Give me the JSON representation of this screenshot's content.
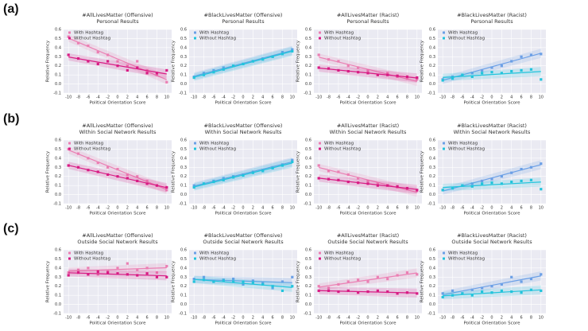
{
  "panel_labels": [
    "(a)",
    "(b)",
    "(c)"
  ],
  "chart_data": [
    {
      "type": "scatter",
      "title": "#AllLivesMatter (Offensive)",
      "subtitle": "Personal Results",
      "xlabel": "Political Orientation Score",
      "ylabel": "Relative Frequency",
      "x": [
        -10,
        -8,
        -6,
        -4,
        -2,
        0,
        2,
        4,
        6,
        8,
        10
      ],
      "xlim": [
        -11,
        11
      ],
      "xticks": [
        -10,
        -8,
        -6,
        -4,
        -2,
        0,
        2,
        4,
        6,
        8,
        10
      ],
      "ylim": [
        -0.1,
        0.6
      ],
      "yticks": [
        -0.1,
        {
          "value": 0,
          "label": "0.0"
        },
        0.1,
        0.2,
        0.3,
        0.4,
        0.5,
        0.6
      ],
      "grid": true,
      "series": [
        {
          "name": "With Hashtag",
          "color": "#eb7fb3",
          "values": [
            0.52,
            0.45,
            0.42,
            0.35,
            0.32,
            0.25,
            0.2,
            0.25,
            0.15,
            0.1,
            0.02
          ]
        },
        {
          "name": "Without Hashtag",
          "color": "#d81b84",
          "values": [
            0.32,
            0.28,
            0.25,
            0.22,
            0.25,
            0.2,
            0.15,
            0.18,
            0.12,
            0.12,
            0.15
          ]
        }
      ]
    },
    {
      "type": "scatter",
      "title": "#BlackLivesMatter (Offensive)",
      "subtitle": "Personal Results",
      "xlabel": "Political Orientation Score",
      "ylabel": "Relative Frequency",
      "x": [
        -10,
        -8,
        -6,
        -4,
        -2,
        0,
        2,
        4,
        6,
        8,
        10
      ],
      "xlim": [
        -11,
        11
      ],
      "xticks": [
        -10,
        -8,
        -6,
        -4,
        -2,
        0,
        2,
        4,
        6,
        8,
        10
      ],
      "ylim": [
        -0.1,
        0.6
      ],
      "yticks": [
        -0.1,
        {
          "value": 0,
          "label": "0.0"
        },
        0.1,
        0.2,
        0.3,
        0.4,
        0.5,
        0.6
      ],
      "grid": true,
      "series": [
        {
          "name": "With Hashtag",
          "color": "#6b9fe6",
          "values": [
            0.08,
            0.12,
            0.15,
            0.18,
            0.2,
            0.22,
            0.25,
            0.28,
            0.3,
            0.35,
            0.38
          ]
        },
        {
          "name": "Without Hashtag",
          "color": "#22c4dc",
          "values": [
            0.07,
            0.1,
            0.13,
            0.16,
            0.2,
            0.22,
            0.25,
            0.27,
            0.3,
            0.33,
            0.36
          ]
        }
      ]
    },
    {
      "type": "scatter",
      "title": "#AllLivesMatter (Racist)",
      "subtitle": "Personal Results",
      "xlabel": "Political Orientation Score",
      "ylabel": "Relative Frequency",
      "x": [
        -10,
        -8,
        -6,
        -4,
        -2,
        0,
        2,
        4,
        6,
        8,
        10
      ],
      "xlim": [
        -11,
        11
      ],
      "xticks": [
        -10,
        -8,
        -6,
        -4,
        -2,
        0,
        2,
        4,
        6,
        8,
        10
      ],
      "ylim": [
        -0.1,
        0.6
      ],
      "yticks": [
        -0.1,
        {
          "value": 0,
          "label": "0.0"
        },
        0.1,
        0.2,
        0.3,
        0.4,
        0.5,
        0.6
      ],
      "grid": true,
      "series": [
        {
          "name": "With Hashtag",
          "color": "#eb7fb3",
          "values": [
            0.32,
            0.27,
            0.25,
            0.2,
            0.18,
            0.15,
            0.1,
            0.12,
            0.08,
            0.06,
            0.05
          ]
        },
        {
          "name": "Without Hashtag",
          "color": "#d81b84",
          "values": [
            0.18,
            0.17,
            0.15,
            0.14,
            0.13,
            0.12,
            0.1,
            0.1,
            0.09,
            0.08,
            0.07
          ]
        }
      ]
    },
    {
      "type": "scatter",
      "title": "#BlackLivesMatter (Racist)",
      "subtitle": "Personal Results",
      "xlabel": "Political Orientation Score",
      "ylabel": "Relative Frequency",
      "x": [
        -10,
        -8,
        -6,
        -4,
        -2,
        0,
        2,
        4,
        6,
        8,
        10
      ],
      "xlim": [
        -11,
        11
      ],
      "xticks": [
        -10,
        -8,
        -6,
        -4,
        -2,
        0,
        2,
        4,
        6,
        8,
        10
      ],
      "ylim": [
        -0.1,
        0.6
      ],
      "yticks": [
        -0.1,
        {
          "value": 0,
          "label": "0.0"
        },
        0.1,
        0.2,
        0.3,
        0.4,
        0.5,
        0.6
      ],
      "grid": true,
      "series": [
        {
          "name": "With Hashtag",
          "color": "#6b9fe6",
          "values": [
            0.05,
            0.08,
            0.1,
            0.12,
            0.15,
            0.18,
            0.2,
            0.25,
            0.3,
            0.32,
            0.33
          ]
        },
        {
          "name": "Without Hashtag",
          "color": "#22c4dc",
          "values": [
            0.04,
            0.06,
            0.1,
            0.08,
            0.12,
            0.13,
            0.12,
            0.14,
            0.15,
            0.16,
            0.05
          ]
        }
      ]
    },
    {
      "type": "scatter",
      "title": "#AllLivesMatter (Offensive)",
      "subtitle": "Within Social Network Results",
      "xlabel": "Political Orientation Score",
      "ylabel": "Relative Frequency",
      "x": [
        -10,
        -8,
        -6,
        -4,
        -2,
        0,
        2,
        4,
        6,
        8,
        10
      ],
      "xlim": [
        -11,
        11
      ],
      "xticks": [
        -10,
        -8,
        -6,
        -4,
        -2,
        0,
        2,
        4,
        6,
        8,
        10
      ],
      "ylim": [
        -0.1,
        0.6
      ],
      "yticks": [
        -0.1,
        {
          "value": 0,
          "label": "0.0"
        },
        0.1,
        0.2,
        0.3,
        0.4,
        0.5,
        0.6
      ],
      "grid": true,
      "series": [
        {
          "name": "With Hashtag",
          "color": "#eb7fb3",
          "values": [
            0.5,
            0.45,
            0.4,
            0.35,
            0.3,
            0.28,
            0.22,
            0.2,
            0.15,
            0.1,
            0.05
          ]
        },
        {
          "name": "Without Hashtag",
          "color": "#d81b84",
          "values": [
            0.32,
            0.3,
            0.27,
            0.25,
            0.22,
            0.2,
            0.18,
            0.15,
            0.12,
            0.1,
            0.08
          ]
        }
      ]
    },
    {
      "type": "scatter",
      "title": "#BlackLivesMatter (Offensive)",
      "subtitle": "Within Social Network Results",
      "xlabel": "Political Orientation Score",
      "ylabel": "Relative Frequency",
      "x": [
        -10,
        -8,
        -6,
        -4,
        -2,
        0,
        2,
        4,
        6,
        8,
        10
      ],
      "xlim": [
        -11,
        11
      ],
      "xticks": [
        -10,
        -8,
        -6,
        -4,
        -2,
        0,
        2,
        4,
        6,
        8,
        10
      ],
      "ylim": [
        -0.1,
        0.6
      ],
      "yticks": [
        -0.1,
        {
          "value": 0,
          "label": "0.0"
        },
        0.1,
        0.2,
        0.3,
        0.4,
        0.5,
        0.6
      ],
      "grid": true,
      "series": [
        {
          "name": "With Hashtag",
          "color": "#6b9fe6",
          "values": [
            0.1,
            0.12,
            0.15,
            0.18,
            0.2,
            0.22,
            0.25,
            0.27,
            0.3,
            0.33,
            0.38
          ]
        },
        {
          "name": "Without Hashtag",
          "color": "#22c4dc",
          "values": [
            0.08,
            0.12,
            0.14,
            0.16,
            0.19,
            0.21,
            0.24,
            0.26,
            0.29,
            0.32,
            0.36
          ]
        }
      ]
    },
    {
      "type": "scatter",
      "title": "#AllLivesMatter (Racist)",
      "subtitle": "Within Social Network Results",
      "xlabel": "Political Orientation Score",
      "ylabel": "Relative Frequency",
      "x": [
        -10,
        -8,
        -6,
        -4,
        -2,
        0,
        2,
        4,
        6,
        8,
        10
      ],
      "xlim": [
        -11,
        11
      ],
      "xticks": [
        -10,
        -8,
        -6,
        -4,
        -2,
        0,
        2,
        4,
        6,
        8,
        10
      ],
      "ylim": [
        -0.1,
        0.6
      ],
      "yticks": [
        -0.1,
        {
          "value": 0,
          "label": "0.0"
        },
        0.1,
        0.2,
        0.3,
        0.4,
        0.5,
        0.6
      ],
      "grid": true,
      "series": [
        {
          "name": "With Hashtag",
          "color": "#eb7fb3",
          "values": [
            0.32,
            0.26,
            0.25,
            0.22,
            0.18,
            0.15,
            0.12,
            0.1,
            0.08,
            0.06,
            0.04
          ]
        },
        {
          "name": "Without Hashtag",
          "color": "#d81b84",
          "values": [
            0.18,
            0.17,
            0.16,
            0.14,
            0.13,
            0.12,
            0.1,
            0.1,
            0.09,
            0.07,
            0.05
          ]
        }
      ]
    },
    {
      "type": "scatter",
      "title": "#BlackLivesMatter (Racist)",
      "subtitle": "Within Social Network Results",
      "xlabel": "Political Orientation Score",
      "ylabel": "Relative Frequency",
      "x": [
        -10,
        -8,
        -6,
        -4,
        -2,
        0,
        2,
        4,
        6,
        8,
        10
      ],
      "xlim": [
        -11,
        11
      ],
      "xticks": [
        -10,
        -8,
        -6,
        -4,
        -2,
        0,
        2,
        4,
        6,
        8,
        10
      ],
      "ylim": [
        -0.1,
        0.6
      ],
      "yticks": [
        -0.1,
        {
          "value": 0,
          "label": "0.0"
        },
        0.1,
        0.2,
        0.3,
        0.4,
        0.5,
        0.6
      ],
      "grid": true,
      "series": [
        {
          "name": "With Hashtag",
          "color": "#6b9fe6",
          "values": [
            0.05,
            0.07,
            0.1,
            0.12,
            0.15,
            0.17,
            0.2,
            0.24,
            0.28,
            0.3,
            0.34
          ]
        },
        {
          "name": "Without Hashtag",
          "color": "#22c4dc",
          "values": [
            0.05,
            0.07,
            0.1,
            0.09,
            0.12,
            0.13,
            0.12,
            0.14,
            0.15,
            0.16,
            0.06
          ]
        }
      ]
    },
    {
      "type": "scatter",
      "title": "#AllLivesMatter (Offensive)",
      "subtitle": "Outside Social Network Results",
      "xlabel": "Political Orientation Score",
      "ylabel": "Relative Frequency",
      "x": [
        -10,
        -8,
        -6,
        -4,
        -2,
        0,
        2,
        4,
        6,
        8,
        10
      ],
      "xlim": [
        -11,
        11
      ],
      "xticks": [
        -10,
        -8,
        -6,
        -4,
        -2,
        0,
        2,
        4,
        6,
        8,
        10
      ],
      "ylim": [
        -0.1,
        0.6
      ],
      "yticks": [
        -0.1,
        {
          "value": 0,
          "label": "0.0"
        },
        0.1,
        0.2,
        0.3,
        0.4,
        0.5,
        0.6
      ],
      "grid": true,
      "series": [
        {
          "name": "With Hashtag",
          "color": "#eb7fb3",
          "values": [
            0.35,
            0.38,
            0.4,
            0.33,
            0.37,
            0.4,
            0.45,
            0.38,
            0.4,
            0.35,
            0.42
          ]
        },
        {
          "name": "Without Hashtag",
          "color": "#d81b84",
          "values": [
            0.32,
            0.35,
            0.33,
            0.36,
            0.35,
            0.34,
            0.33,
            0.32,
            0.34,
            0.3,
            0.3
          ]
        }
      ]
    },
    {
      "type": "scatter",
      "title": "#BlackLivesMatter (Offensive)",
      "subtitle": "Outside Social Network Results",
      "xlabel": "Political Orientation Score",
      "ylabel": "Relative Frequency",
      "x": [
        -10,
        -8,
        -6,
        -4,
        -2,
        0,
        2,
        4,
        6,
        8,
        10
      ],
      "xlim": [
        -11,
        11
      ],
      "xticks": [
        -10,
        -8,
        -6,
        -4,
        -2,
        0,
        2,
        4,
        6,
        8,
        10
      ],
      "ylim": [
        -0.1,
        0.6
      ],
      "yticks": [
        -0.1,
        {
          "value": 0,
          "label": "0.0"
        },
        0.1,
        0.2,
        0.3,
        0.4,
        0.5,
        0.6
      ],
      "grid": true,
      "series": [
        {
          "name": "With Hashtag",
          "color": "#6b9fe6",
          "values": [
            0.28,
            0.3,
            0.25,
            0.27,
            0.28,
            0.22,
            0.26,
            0.24,
            0.18,
            0.25,
            0.3
          ]
        },
        {
          "name": "Without Hashtag",
          "color": "#22c4dc",
          "values": [
            0.25,
            0.27,
            0.25,
            0.26,
            0.25,
            0.25,
            0.24,
            0.22,
            0.2,
            0.15,
            0.2
          ]
        }
      ]
    },
    {
      "type": "scatter",
      "title": "#AllLivesMatter (Racist)",
      "subtitle": "Outside Social Network Results",
      "xlabel": "Political Orientation Score",
      "ylabel": "Relative Frequency",
      "x": [
        -10,
        -8,
        -6,
        -4,
        -2,
        0,
        2,
        4,
        6,
        8,
        10
      ],
      "xlim": [
        -11,
        11
      ],
      "xticks": [
        -10,
        -8,
        -6,
        -4,
        -2,
        0,
        2,
        4,
        6,
        8,
        10
      ],
      "ylim": [
        -0.1,
        0.6
      ],
      "yticks": [
        -0.1,
        {
          "value": 0,
          "label": "0.0"
        },
        0.1,
        0.2,
        0.3,
        0.4,
        0.5,
        0.6
      ],
      "grid": true,
      "series": [
        {
          "name": "With Hashtag",
          "color": "#eb7fb3",
          "values": [
            0.2,
            0.18,
            0.22,
            0.25,
            0.27,
            0.25,
            0.3,
            0.28,
            0.32,
            0.35,
            0.33
          ]
        },
        {
          "name": "Without Hashtag",
          "color": "#d81b84",
          "values": [
            0.15,
            0.15,
            0.14,
            0.15,
            0.13,
            0.14,
            0.15,
            0.14,
            0.12,
            0.13,
            0.12
          ]
        }
      ]
    },
    {
      "type": "scatter",
      "title": "#BlackLivesMatter (Racist)",
      "subtitle": "Outside Social Network Results",
      "xlabel": "Political Orientation Score",
      "ylabel": "Relative Frequency",
      "x": [
        -10,
        -8,
        -6,
        -4,
        -2,
        0,
        2,
        4,
        6,
        8,
        10
      ],
      "xlim": [
        -11,
        11
      ],
      "xticks": [
        -10,
        -8,
        -6,
        -4,
        -2,
        0,
        2,
        4,
        6,
        8,
        10
      ],
      "ylim": [
        -0.1,
        0.6
      ],
      "yticks": [
        -0.1,
        {
          "value": 0,
          "label": "0.0"
        },
        0.1,
        0.2,
        0.3,
        0.4,
        0.5,
        0.6
      ],
      "grid": true,
      "series": [
        {
          "name": "With Hashtag",
          "color": "#6b9fe6",
          "values": [
            0.12,
            0.15,
            0.12,
            0.16,
            0.18,
            0.2,
            0.22,
            0.3,
            0.25,
            0.28,
            0.33
          ]
        },
        {
          "name": "Without Hashtag",
          "color": "#22c4dc",
          "values": [
            0.08,
            0.1,
            0.12,
            0.1,
            0.14,
            0.13,
            0.15,
            0.14,
            0.13,
            0.16,
            0.15
          ]
        }
      ]
    }
  ]
}
